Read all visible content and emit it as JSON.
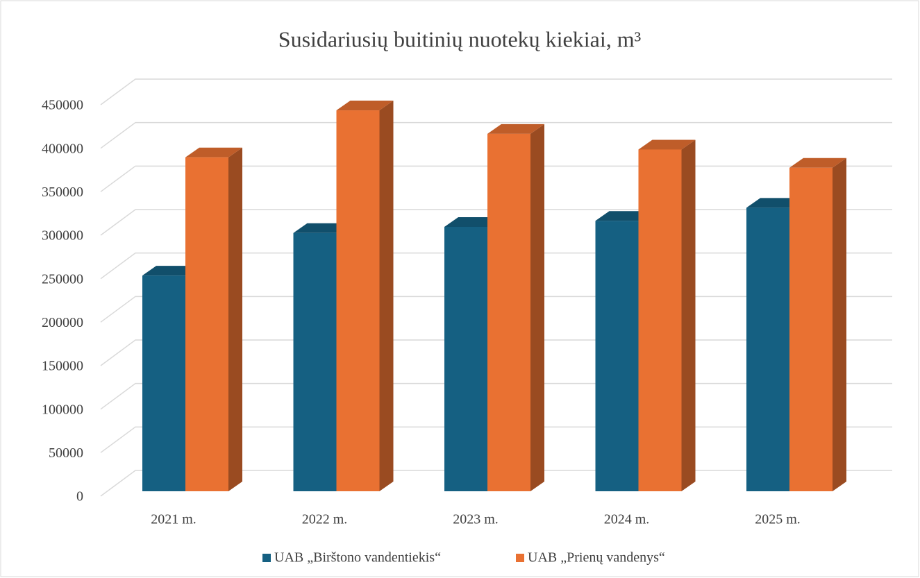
{
  "chart_data": {
    "type": "bar3d",
    "title": "Susidariusių buitinių nuotekų kiekiai, m³",
    "categories": [
      "2021 m.",
      "2022 m.",
      "2023 m.",
      "2024 m.",
      "2025 m."
    ],
    "series": [
      {
        "name": "UAB „Birštono vandentiekis“",
        "color": "#156082",
        "values": [
          248000,
          297000,
          304000,
          311000,
          326000
        ]
      },
      {
        "name": "UAB „Prienų vandenys“",
        "color": "#e97132",
        "values": [
          384000,
          438000,
          411000,
          393000,
          372000
        ]
      }
    ],
    "ylim": [
      0,
      450000
    ],
    "yticks": [
      0,
      50000,
      100000,
      150000,
      200000,
      250000,
      300000,
      350000,
      400000,
      450000
    ],
    "grid": true,
    "legend": "bottom"
  }
}
